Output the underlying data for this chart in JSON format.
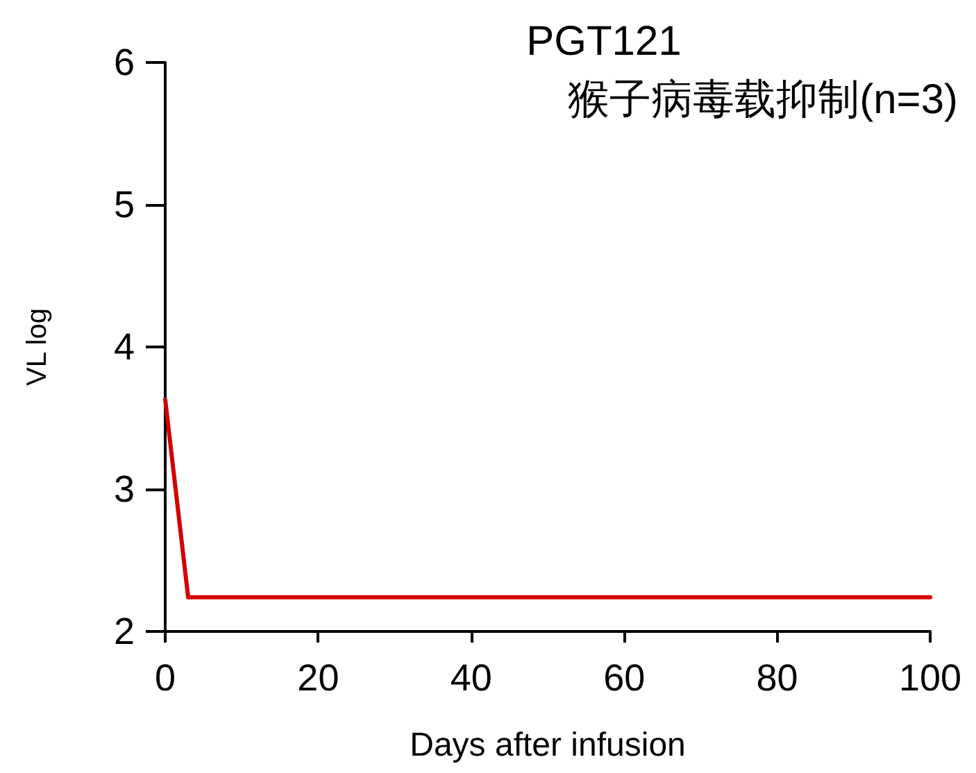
{
  "chart_data": {
    "type": "line",
    "title": "PGT121",
    "subtitle": "猴子病毒载抑制(n=3)",
    "xlabel": "Days after infusion",
    "ylabel": "VL log",
    "x": [
      0,
      3,
      100
    ],
    "series": [
      {
        "color": "#d40000",
        "values": [
          3.63,
          2.24,
          2.24
        ]
      }
    ],
    "xlim": [
      0,
      100
    ],
    "xticks": [
      0,
      20,
      40,
      60,
      80,
      100
    ],
    "ylim": [
      2,
      6
    ],
    "yticks": [
      2,
      3,
      4,
      5,
      6
    ],
    "grid": false,
    "marker": "none",
    "line_style": "solid"
  }
}
